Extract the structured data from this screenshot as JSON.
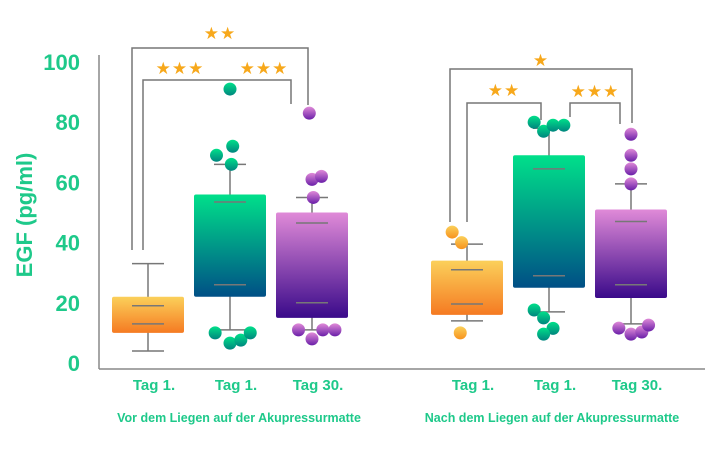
{
  "chart_data": {
    "type": "box",
    "ylabel": "EGF (pg/ml)",
    "ylim": [
      0,
      100
    ],
    "yticks": [
      0,
      20,
      40,
      60,
      80,
      100
    ],
    "grid": false,
    "colors": {
      "text": "#1ec98a",
      "star": "#f7a81b",
      "line": "#777777"
    },
    "groups": [
      {
        "label": "Vor dem Liegen auf der Akupressurmatte",
        "boxes": [
          {
            "label": "Tag 1.",
            "gradient": [
              "#fbd05a",
              "#f57a22"
            ],
            "dot": "#f7931e",
            "box_low": 10,
            "box_high": 22,
            "inner_low": 13,
            "inner_high": 19,
            "whisker_low": 4,
            "whisker_high": 33,
            "points": []
          },
          {
            "label": "Tag 1.",
            "gradient": [
              "#00e08a",
              "#004f86"
            ],
            "dot": "#00857e",
            "box_low": 22,
            "box_high": 56,
            "inner_low": 26,
            "inner_high": 53.5,
            "whisker_low": 11,
            "whisker_high": 66,
            "points": [
              [
                0,
                91
              ],
              [
                -0.5,
                69
              ],
              [
                0.1,
                72
              ],
              [
                0.05,
                66
              ],
              [
                -0.55,
                10
              ],
              [
                0,
                6.6
              ],
              [
                0.4,
                7.6
              ],
              [
                0.75,
                10
              ]
            ]
          },
          {
            "label": "Tag 30.",
            "gradient": [
              "#e08ad8",
              "#3a0a8a"
            ],
            "dot": "#6a1fa8",
            "box_low": 15,
            "box_high": 50,
            "inner_low": 20,
            "inner_high": 46.5,
            "whisker_low": 11,
            "whisker_high": 55,
            "points": [
              [
                -0.1,
                83
              ],
              [
                0,
                61
              ],
              [
                0.35,
                62
              ],
              [
                0.05,
                55
              ],
              [
                -0.5,
                11
              ],
              [
                0,
                8
              ],
              [
                0.4,
                11
              ],
              [
                0.85,
                11
              ]
            ]
          }
        ],
        "comparisons": [
          {
            "from": 0,
            "to": 2,
            "stars": "★★"
          },
          {
            "from": 0,
            "to": 1,
            "stars": "★★★"
          },
          {
            "from": 1,
            "to": 2,
            "stars": "★★★"
          }
        ]
      },
      {
        "label": "Nach dem Liegen auf der Akupressurmatte",
        "boxes": [
          {
            "label": "Tag 1.",
            "gradient": [
              "#fbd05a",
              "#f57a22"
            ],
            "dot": "#f7931e",
            "box_low": 16,
            "box_high": 34,
            "inner_low": 19.6,
            "inner_high": 31,
            "whisker_low": 14,
            "whisker_high": 39.5,
            "points": [
              [
                -0.55,
                43.5
              ],
              [
                -0.2,
                40
              ],
              [
                -0.25,
                10
              ]
            ]
          },
          {
            "label": "Tag 1.",
            "gradient": [
              "#00e08a",
              "#004f86"
            ],
            "dot": "#00857e",
            "box_low": 25,
            "box_high": 69,
            "inner_low": 29,
            "inner_high": 64.5,
            "whisker_low": 17,
            "whisker_high": 78,
            "points": [
              [
                -0.55,
                80
              ],
              [
                -0.2,
                77
              ],
              [
                0.15,
                79
              ],
              [
                0.55,
                79
              ],
              [
                -0.55,
                17.6
              ],
              [
                -0.2,
                15
              ],
              [
                0.15,
                11.5
              ],
              [
                -0.2,
                9.6
              ]
            ]
          },
          {
            "label": "Tag 30.",
            "gradient": [
              "#e08ad8",
              "#3a0a8a"
            ],
            "dot": "#6a1fa8",
            "box_low": 21.6,
            "box_high": 51,
            "inner_low": 26,
            "inner_high": 47,
            "whisker_low": 13,
            "whisker_high": 59.5,
            "points": [
              [
                0,
                76
              ],
              [
                0,
                69
              ],
              [
                0,
                64.5
              ],
              [
                0,
                59.5
              ],
              [
                -0.45,
                11.6
              ],
              [
                0,
                9.6
              ],
              [
                0.4,
                10.3
              ],
              [
                0.65,
                12.6
              ]
            ]
          }
        ],
        "comparisons": [
          {
            "from": 0,
            "to": 2,
            "stars": "★"
          },
          {
            "from": 0,
            "to": 1,
            "stars": "★★"
          },
          {
            "from": 1,
            "to": 2,
            "stars": "★★★"
          }
        ]
      }
    ]
  }
}
